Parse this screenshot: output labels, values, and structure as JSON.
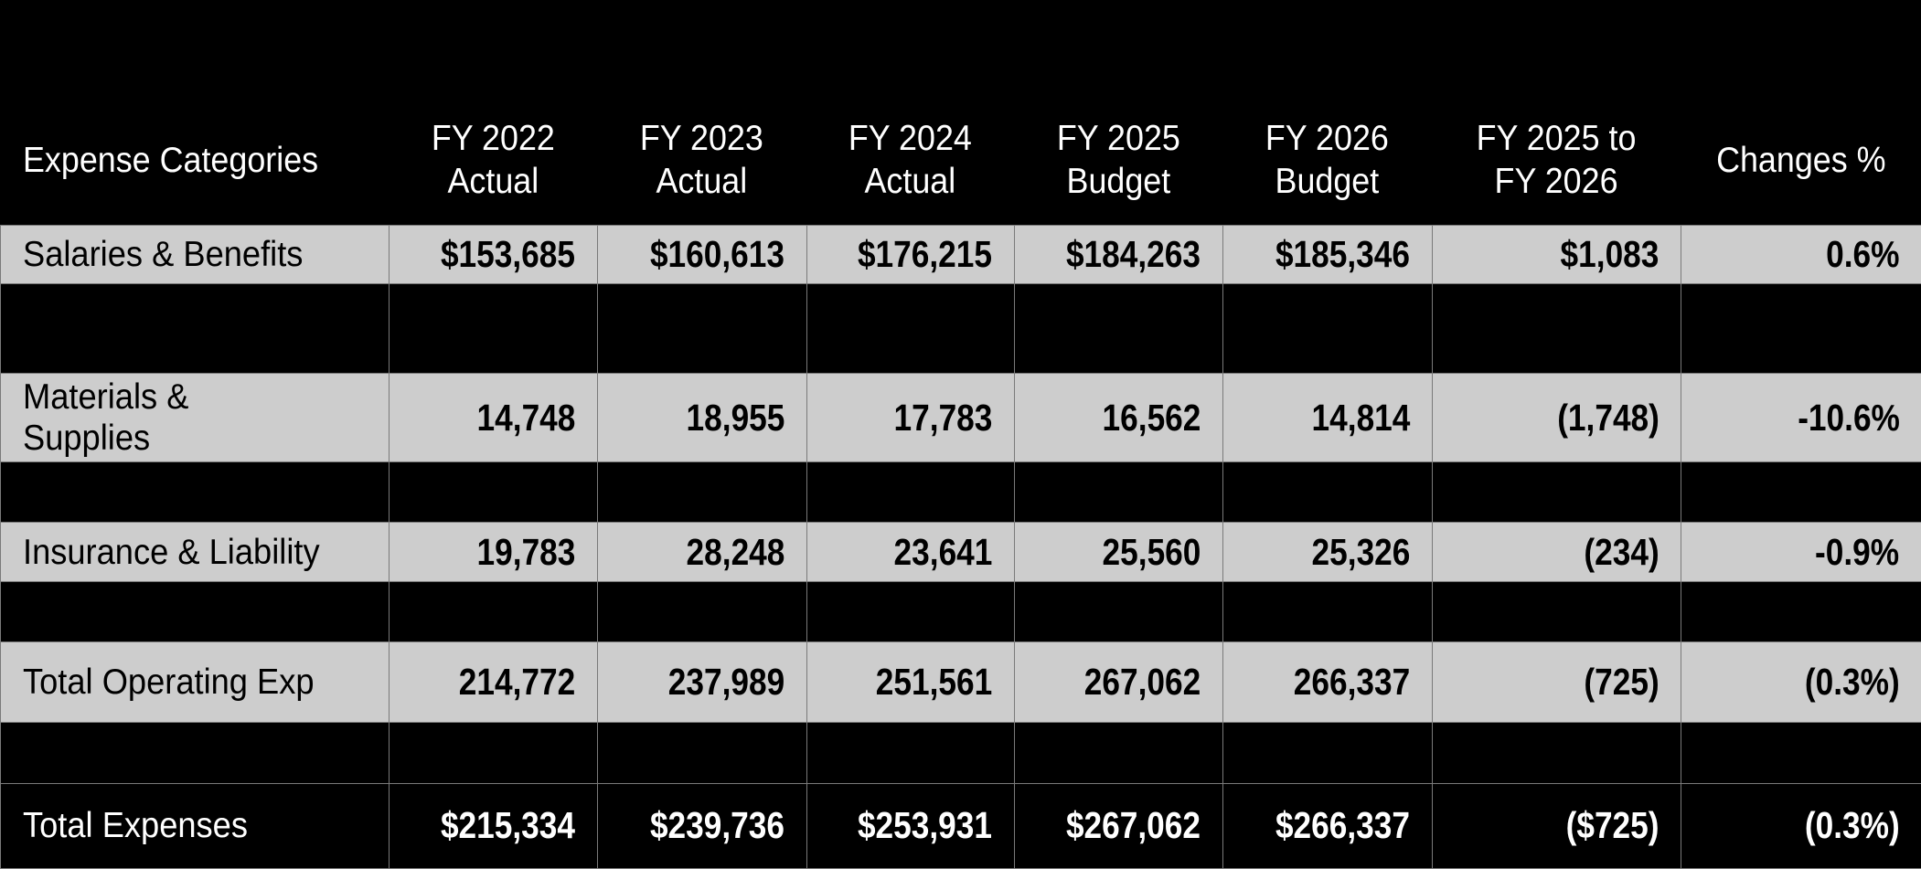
{
  "table": {
    "headers": [
      "Expense Categories",
      "FY 2022\nActual",
      "FY 2023\nActual",
      "FY 2024\nActual",
      "FY 2025\nBudget",
      "FY 2026\nBudget",
      "FY 2025 to\nFY 2026",
      "Changes %"
    ],
    "rows": [
      {
        "label": "Salaries & Benefits",
        "values": [
          "$153,685",
          "$160,613",
          "$176,215",
          "$184,263",
          "$185,346",
          "$1,083",
          "0.6%"
        ]
      },
      {
        "label": "Materials &\nSupplies",
        "values": [
          "14,748",
          "18,955",
          "17,783",
          "16,562",
          "14,814",
          "(1,748)",
          "-10.6%"
        ]
      },
      {
        "label": "Insurance & Liability",
        "values": [
          "19,783",
          "28,248",
          "23,641",
          "25,560",
          "25,326",
          "(234)",
          "-0.9%"
        ]
      },
      {
        "label": "Total Operating Exp",
        "values": [
          "214,772",
          "237,989",
          "251,561",
          "267,062",
          "266,337",
          "(725)",
          "(0.3%)"
        ]
      },
      {
        "label": "Total Expenses",
        "values": [
          "$215,334",
          "$239,736",
          "$253,931",
          "$267,062",
          "$266,337",
          "($725)",
          "(0.3%)"
        ]
      }
    ]
  },
  "colors": {
    "background": "#000000",
    "row_fill": "#cdcdcd",
    "grid_line": "#7a7a7a",
    "header_text": "#ffffff",
    "total_row_text": "#ffffff"
  }
}
